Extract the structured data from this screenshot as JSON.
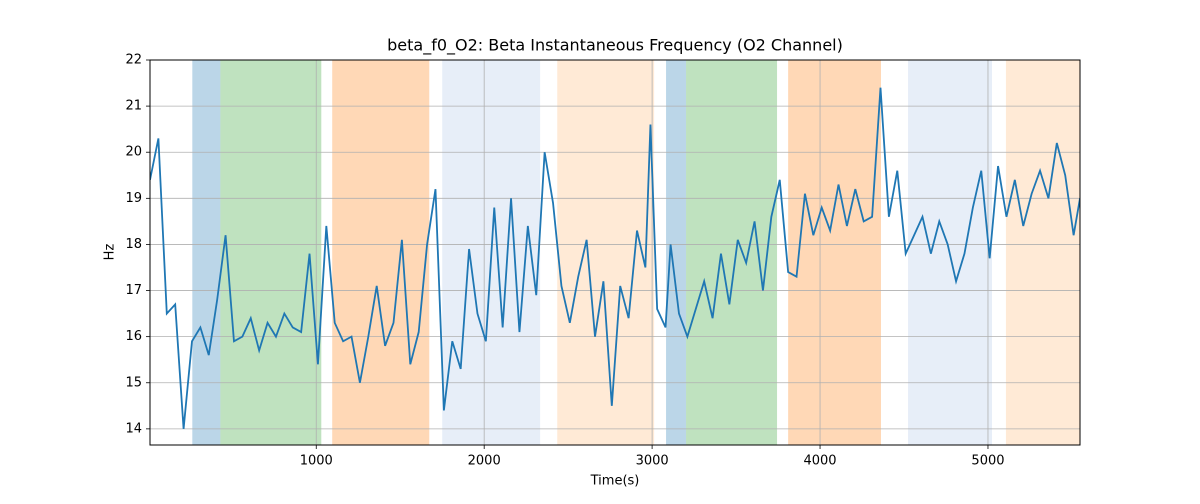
{
  "chart_data": {
    "type": "line",
    "title": "beta_f0_O2: Beta Instantaneous Frequency (O2 Channel)",
    "x_label": "Time(s)",
    "y_label": "Hz",
    "x": [
      10,
      60,
      110,
      160,
      210,
      260,
      310,
      360,
      410,
      460,
      510,
      560,
      610,
      660,
      710,
      760,
      810,
      860,
      910,
      960,
      1010,
      1060,
      1110,
      1160,
      1210,
      1260,
      1310,
      1360,
      1410,
      1460,
      1510,
      1560,
      1610,
      1660,
      1710,
      1760,
      1810,
      1860,
      1910,
      1960,
      2010,
      2060,
      2110,
      2160,
      2210,
      2260,
      2310,
      2360,
      2410,
      2460,
      2510,
      2560,
      2610,
      2660,
      2710,
      2760,
      2810,
      2860,
      2910,
      2960,
      2990,
      3030,
      3080,
      3110,
      3160,
      3210,
      3260,
      3310,
      3360,
      3410,
      3460,
      3510,
      3560,
      3610,
      3660,
      3710,
      3760,
      3810,
      3860,
      3910,
      3960,
      4010,
      4060,
      4110,
      4160,
      4210,
      4260,
      4310,
      4360,
      4410,
      4460,
      4510,
      4560,
      4610,
      4660,
      4710,
      4760,
      4810,
      4860,
      4910,
      4960,
      5010,
      5060,
      5110,
      5160,
      5210,
      5260,
      5310,
      5360,
      5410,
      5460,
      5510,
      5548
    ],
    "series": [
      {
        "name": "beta_f0_O2",
        "color": "#1f77b4",
        "values": [
          19.4,
          20.3,
          16.5,
          16.7,
          14.0,
          15.9,
          16.2,
          15.6,
          16.8,
          18.2,
          15.9,
          16.0,
          16.4,
          15.7,
          16.3,
          16.0,
          16.5,
          16.2,
          16.1,
          17.8,
          15.4,
          18.4,
          16.3,
          15.9,
          16.0,
          15.0,
          16.0,
          17.1,
          15.8,
          16.3,
          18.1,
          15.4,
          16.1,
          18.0,
          19.2,
          14.4,
          15.9,
          15.3,
          17.9,
          16.5,
          15.9,
          18.8,
          16.2,
          19.0,
          16.1,
          18.4,
          16.9,
          20.0,
          18.9,
          17.1,
          16.3,
          17.3,
          18.1,
          16.0,
          17.2,
          14.5,
          17.1,
          16.4,
          18.3,
          17.5,
          20.6,
          16.6,
          16.2,
          18.0,
          16.5,
          16.0,
          16.6,
          17.2,
          16.4,
          17.8,
          16.7,
          18.1,
          17.6,
          18.5,
          17.0,
          18.6,
          19.4,
          17.4,
          17.3,
          19.1,
          18.2,
          18.8,
          18.3,
          19.3,
          18.4,
          19.2,
          18.5,
          18.6,
          21.4,
          18.6,
          19.6,
          17.8,
          18.2,
          18.6,
          17.8,
          18.5,
          18.0,
          17.2,
          17.8,
          18.8,
          19.6,
          17.7,
          19.7,
          18.6,
          19.4,
          18.4,
          19.1,
          19.6,
          19.0,
          20.2,
          19.5,
          18.2,
          19.0
        ]
      }
    ],
    "spans": [
      {
        "start": 262,
        "end": 429,
        "color": "#1f77b4"
      },
      {
        "start": 429,
        "end": 1030,
        "color": "#2ca02c"
      },
      {
        "start": 1095,
        "end": 1673,
        "color": "#ff7f0e"
      },
      {
        "start": 1750,
        "end": 2333,
        "color": "#aec7e8"
      },
      {
        "start": 2435,
        "end": 3012,
        "color": "#ffbb78"
      },
      {
        "start": 3083,
        "end": 3202,
        "color": "#1f77b4"
      },
      {
        "start": 3202,
        "end": 3744,
        "color": "#2ca02c"
      },
      {
        "start": 3810,
        "end": 4363,
        "color": "#ff7f0e"
      },
      {
        "start": 4524,
        "end": 5024,
        "color": "#aec7e8"
      },
      {
        "start": 5107,
        "end": 5548,
        "color": "#ffbb78"
      }
    ],
    "xlim": [
      10,
      5548
    ],
    "ylim": [
      13.65,
      22
    ],
    "xticks": [
      1000,
      2000,
      3000,
      4000,
      5000
    ],
    "yticks": [
      14,
      15,
      16,
      17,
      18,
      19,
      20,
      21,
      22
    ],
    "grid": true
  }
}
